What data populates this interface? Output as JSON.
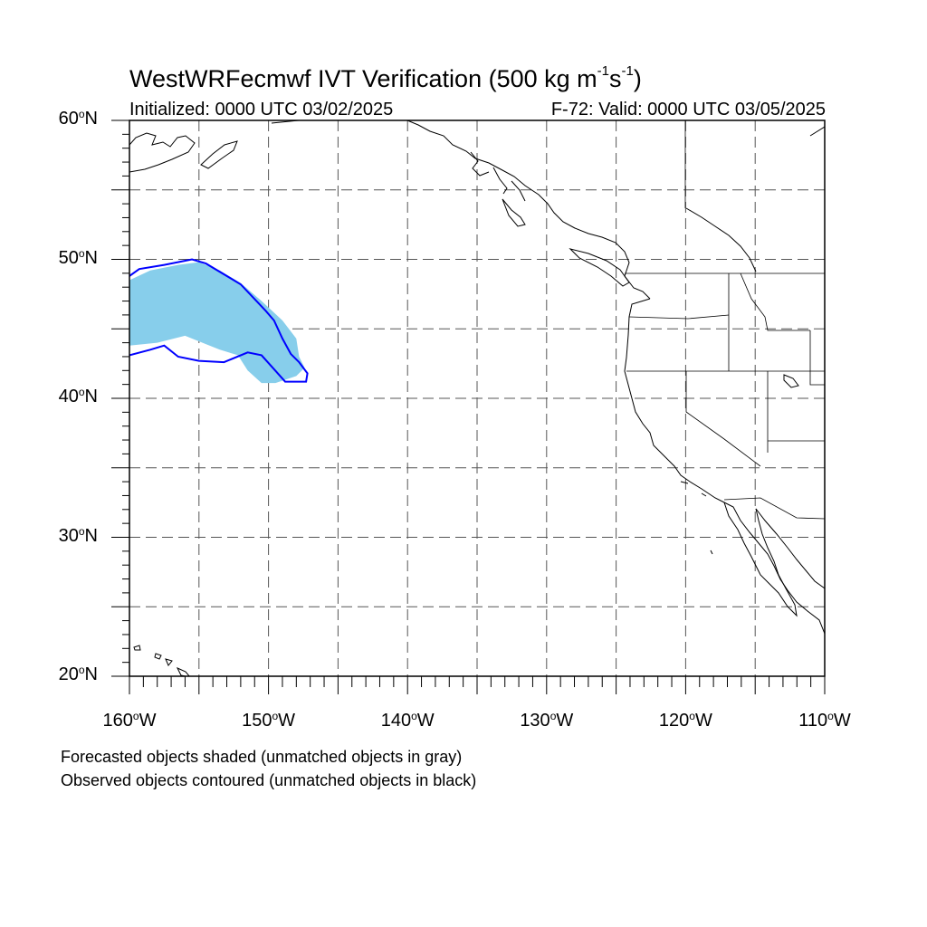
{
  "title": {
    "main": "WestWRFecmwf IVT Verification (500 kg m",
    "sup1": "-1",
    "mid": "s",
    "sup2": "-1",
    "end": ")"
  },
  "subtitle": {
    "initialized": "Initialized: 0000 UTC 03/02/2025",
    "valid": "F-72: Valid: 0000 UTC 03/05/2025"
  },
  "axes": {
    "lat_labels": [
      {
        "num": "60",
        "deg": "o",
        "dir": "N",
        "lat": 60
      },
      {
        "num": "50",
        "deg": "o",
        "dir": "N",
        "lat": 50
      },
      {
        "num": "40",
        "deg": "o",
        "dir": "N",
        "lat": 40
      },
      {
        "num": "30",
        "deg": "o",
        "dir": "N",
        "lat": 30
      },
      {
        "num": "20",
        "deg": "o",
        "dir": "N",
        "lat": 20
      }
    ],
    "lon_labels": [
      {
        "num": "160",
        "deg": "o",
        "dir": "W",
        "lon": -160
      },
      {
        "num": "150",
        "deg": "o",
        "dir": "W",
        "lon": -150
      },
      {
        "num": "140",
        "deg": "o",
        "dir": "W",
        "lon": -140
      },
      {
        "num": "130",
        "deg": "o",
        "dir": "W",
        "lon": -130
      },
      {
        "num": "120",
        "deg": "o",
        "dir": "W",
        "lon": -120
      },
      {
        "num": "110",
        "deg": "o",
        "dir": "W",
        "lon": -110
      }
    ],
    "lon_range": [
      -160,
      -110
    ],
    "lat_range": [
      20,
      60
    ],
    "grid_spacing_deg": 5,
    "grid_style": "dashed"
  },
  "legend_notes": {
    "forecast": "Forecasted objects shaded (unmatched objects in gray)",
    "observed": "Observed objects contoured (unmatched objects in black)"
  },
  "colors": {
    "forecast_fill": "#87ceeb",
    "observed_contour": "#0000ff",
    "coastline": "#000000",
    "grid": "#555555"
  },
  "forecast_object": {
    "polygon_lonlat": [
      [
        -160,
        48.5
      ],
      [
        -158.5,
        49.2
      ],
      [
        -156.5,
        49.6
      ],
      [
        -155,
        49.8
      ],
      [
        -153.5,
        49.2
      ],
      [
        -152,
        48.3
      ],
      [
        -150.5,
        47
      ],
      [
        -149,
        45.6
      ],
      [
        -148,
        44.3
      ],
      [
        -147.8,
        43
      ],
      [
        -147.4,
        42.2
      ],
      [
        -148,
        41.6
      ],
      [
        -149.5,
        41.1
      ],
      [
        -150.5,
        41.1
      ],
      [
        -151.5,
        42
      ],
      [
        -152.2,
        43.1
      ],
      [
        -153.5,
        43.5
      ],
      [
        -156,
        44.5
      ],
      [
        -158,
        44
      ],
      [
        -160,
        43.8
      ]
    ]
  },
  "observed_object": {
    "contour_lonlat": [
      [
        -160,
        48.8
      ],
      [
        -159.3,
        49.3
      ],
      [
        -157.5,
        49.6
      ],
      [
        -155.5,
        50
      ],
      [
        -154.5,
        49.7
      ],
      [
        -152,
        48.2
      ],
      [
        -150.2,
        46.3
      ],
      [
        -149.6,
        45.6
      ],
      [
        -149,
        44.3
      ],
      [
        -148.4,
        43.2
      ],
      [
        -147.8,
        42.6
      ],
      [
        -147.2,
        41.8
      ],
      [
        -147.3,
        41.2
      ],
      [
        -148.8,
        41.2
      ],
      [
        -149.6,
        42.1
      ],
      [
        -150.5,
        43.1
      ],
      [
        -151.5,
        43.3
      ],
      [
        -153.2,
        42.6
      ],
      [
        -155,
        42.7
      ],
      [
        -156.5,
        43
      ],
      [
        -157.5,
        43.8
      ],
      [
        -158.5,
        43.5
      ],
      [
        -160,
        43.1
      ]
    ]
  }
}
